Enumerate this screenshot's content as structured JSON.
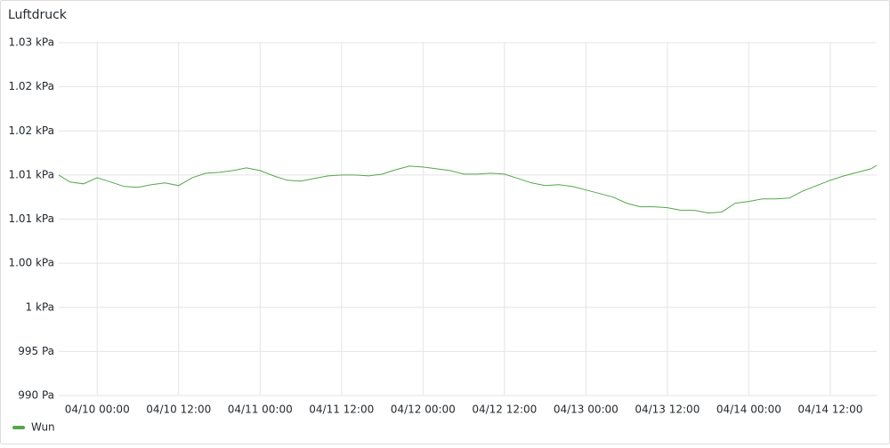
{
  "chart_data": {
    "type": "line",
    "title": "Luftdruck",
    "x": [
      "04/09 18:20",
      "04/09 20:00",
      "04/09 22:00",
      "04/10 00:00",
      "04/10 02:00",
      "04/10 04:00",
      "04/10 06:00",
      "04/10 08:00",
      "04/10 10:00",
      "04/10 12:00",
      "04/10 14:00",
      "04/10 16:00",
      "04/10 18:00",
      "04/10 20:00",
      "04/10 22:00",
      "04/11 00:00",
      "04/11 02:00",
      "04/11 04:00",
      "04/11 06:00",
      "04/11 08:00",
      "04/11 10:00",
      "04/11 12:00",
      "04/11 14:00",
      "04/11 16:00",
      "04/11 18:00",
      "04/11 20:00",
      "04/11 22:00",
      "04/12 00:00",
      "04/12 02:00",
      "04/12 04:00",
      "04/12 06:00",
      "04/12 08:00",
      "04/12 10:00",
      "04/12 12:00",
      "04/12 14:00",
      "04/12 16:00",
      "04/12 18:00",
      "04/12 20:00",
      "04/12 22:00",
      "04/13 00:00",
      "04/13 02:00",
      "04/13 04:00",
      "04/13 06:00",
      "04/13 08:00",
      "04/13 10:00",
      "04/13 12:00",
      "04/13 14:00",
      "04/13 16:00",
      "04/13 18:00",
      "04/13 20:00",
      "04/13 22:00",
      "04/14 00:00",
      "04/14 02:00",
      "04/14 04:00",
      "04/14 06:00",
      "04/14 08:00",
      "04/14 10:00",
      "04/14 12:00",
      "04/14 14:00",
      "04/14 16:00",
      "04/14 18:00",
      "04/14 18:50"
    ],
    "series": [
      {
        "name": "Wun",
        "color": "#56a64b",
        "values": [
          1015.0,
          1014.2,
          1014.0,
          1014.7,
          1014.2,
          1013.7,
          1013.6,
          1013.9,
          1014.1,
          1013.8,
          1014.7,
          1015.2,
          1015.3,
          1015.5,
          1015.8,
          1015.5,
          1014.9,
          1014.4,
          1014.3,
          1014.6,
          1014.9,
          1015.0,
          1015.0,
          1014.9,
          1015.1,
          1015.6,
          1016.0,
          1015.9,
          1015.7,
          1015.5,
          1015.1,
          1015.1,
          1015.2,
          1015.1,
          1014.6,
          1014.1,
          1013.8,
          1013.9,
          1013.7,
          1013.3,
          1012.9,
          1012.5,
          1011.8,
          1011.4,
          1011.4,
          1011.3,
          1011.0,
          1011.0,
          1010.7,
          1010.8,
          1011.8,
          1012.0,
          1012.3,
          1012.3,
          1012.4,
          1013.2,
          1013.8,
          1014.4,
          1014.9,
          1015.3,
          1015.7,
          1016.1
        ]
      }
    ],
    "xlim": [
      "04/09 18:20",
      "04/14 18:50"
    ],
    "xticks": [
      "04/10 00:00",
      "04/10 12:00",
      "04/11 00:00",
      "04/11 12:00",
      "04/12 00:00",
      "04/12 12:00",
      "04/13 00:00",
      "04/13 12:00",
      "04/14 00:00",
      "04/14 12:00"
    ],
    "ylim": [
      990,
      1030
    ],
    "yticks": [
      {
        "value": 990,
        "label": "990 Pa"
      },
      {
        "value": 995,
        "label": "995 Pa"
      },
      {
        "value": 1000,
        "label": "1 kPa"
      },
      {
        "value": 1005,
        "label": "1.00 kPa"
      },
      {
        "value": 1010,
        "label": "1.01 kPa"
      },
      {
        "value": 1015,
        "label": "1.01 kPa"
      },
      {
        "value": 1020,
        "label": "1.02 kPa"
      },
      {
        "value": 1025,
        "label": "1.02 kPa"
      },
      {
        "value": 1030,
        "label": "1.03 kPa"
      }
    ],
    "grid": true
  }
}
